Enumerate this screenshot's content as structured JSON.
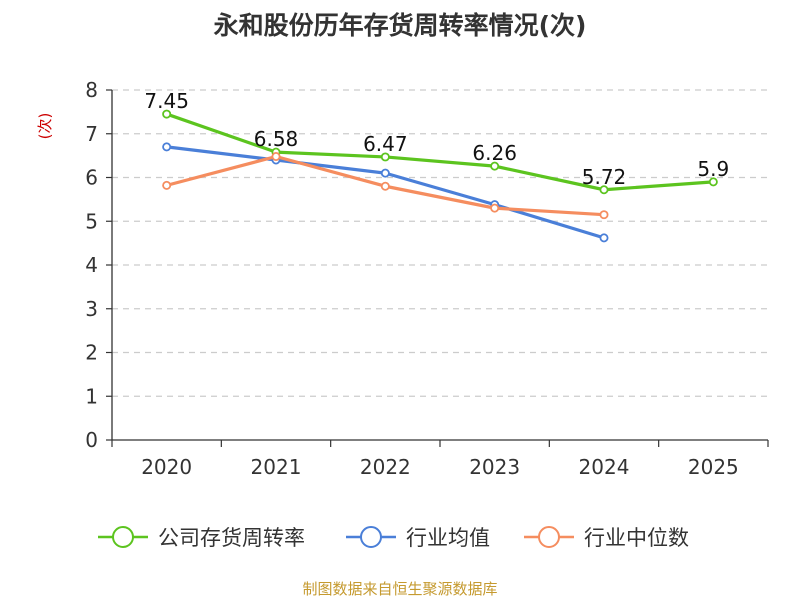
{
  "chart_data": {
    "type": "line",
    "title": "永和股份历年存货周转率情况(次)",
    "ylabel": "(次)",
    "xlabel": "",
    "categories": [
      "2020",
      "2021",
      "2022",
      "2023",
      "2024",
      "2025"
    ],
    "ylim": [
      0,
      8
    ],
    "yticks": [
      "0",
      "1",
      "2",
      "3",
      "4",
      "5",
      "6",
      "7",
      "8"
    ],
    "grid": true,
    "legend_position": "bottom",
    "series": [
      {
        "name": "公司存货周转率",
        "color": "#5cc41f",
        "values": [
          7.45,
          6.58,
          6.47,
          6.26,
          5.72,
          5.9
        ],
        "labels": [
          "7.45",
          "6.58",
          "6.47",
          "6.26",
          "5.72",
          "5.9"
        ]
      },
      {
        "name": "行业均值",
        "color": "#4a7fd8",
        "values": [
          6.7,
          6.4,
          6.1,
          5.38,
          4.62,
          null
        ]
      },
      {
        "name": "行业中位数",
        "color": "#f58d5f",
        "values": [
          5.82,
          6.48,
          5.8,
          5.3,
          5.15,
          null
        ]
      }
    ]
  },
  "footer": {
    "source": "制图数据来自恒生聚源数据库"
  }
}
